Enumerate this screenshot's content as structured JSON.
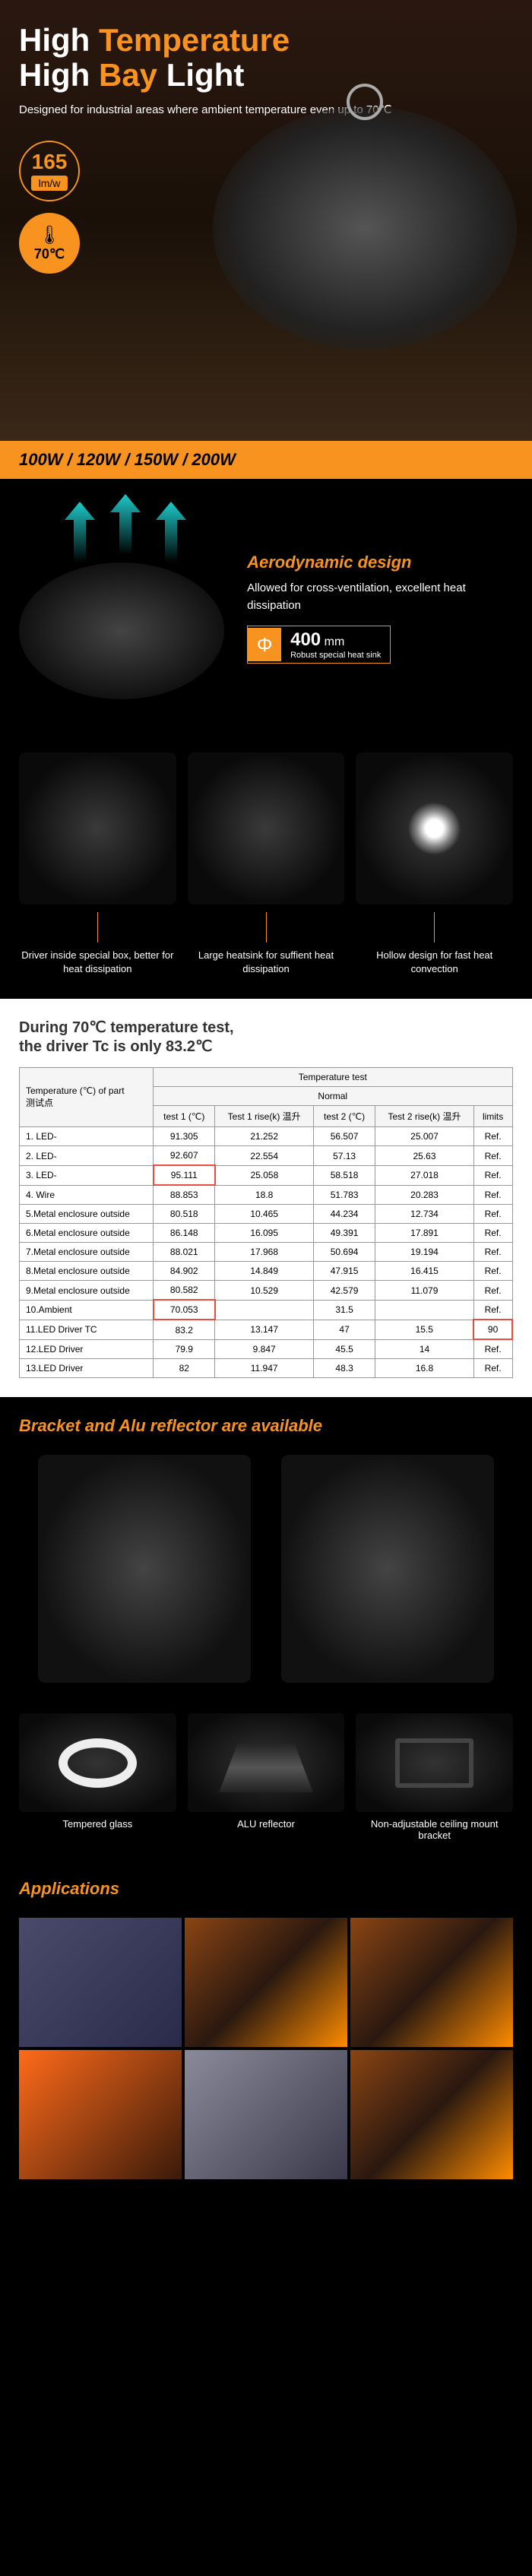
{
  "hero": {
    "title_line1_a": "High",
    "title_line1_b": "Temperature",
    "title_line2_a": "High",
    "title_line2_b": "Bay",
    "title_line2_c": "Light",
    "subtitle": "Designed for industrial areas where ambient temperature even up to 70℃",
    "badge_165": "165",
    "badge_lmw": "lm/w",
    "badge_temp": "70℃",
    "wattages": "100W / 120W / 150W / 200W"
  },
  "aero": {
    "title": "Aerodynamic design",
    "desc": "Allowed for cross-ventilation, excellent heat dissipation",
    "phi_val": "400",
    "phi_unit": "mm",
    "phi_sub": "Robust special heat sink"
  },
  "cols": [
    {
      "text": "Driver inside special box, better for heat dissipation"
    },
    {
      "text": "Large heatsink for suffient heat dissipation"
    },
    {
      "text": "Hollow design for fast heat convection"
    }
  ],
  "test": {
    "title_a": "During 70℃ temperature test,",
    "title_b": "the driver Tc is only 83.2℃",
    "header_main": "Temperature (℃) of part",
    "header_cn": "测试点",
    "header_temp": "Temperature test",
    "header_normal": "Normal",
    "cols": [
      "test 1 (℃)",
      "Test 1 rise(k) 温升",
      "test 2 (℃)",
      "Test 2 rise(k) 温升",
      "limits"
    ],
    "rows": [
      {
        "n": "1. LED-",
        "v": [
          "91.305",
          "21.252",
          "56.507",
          "25.007",
          "Ref."
        ]
      },
      {
        "n": "2. LED-",
        "v": [
          "92.607",
          "22.554",
          "57.13",
          "25.63",
          "Ref."
        ]
      },
      {
        "n": "3. LED-",
        "v": [
          "95.111",
          "25.058",
          "58.518",
          "27.018",
          "Ref."
        ],
        "hl": 0
      },
      {
        "n": "4. Wire",
        "v": [
          "88.853",
          "18.8",
          "51.783",
          "20.283",
          "Ref."
        ]
      },
      {
        "n": "5.Metal enclosure outside",
        "v": [
          "80.518",
          "10.465",
          "44.234",
          "12.734",
          "Ref."
        ]
      },
      {
        "n": "6.Metal enclosure outside",
        "v": [
          "86.148",
          "16.095",
          "49.391",
          "17.891",
          "Ref."
        ]
      },
      {
        "n": "7.Metal enclosure outside",
        "v": [
          "88.021",
          "17.968",
          "50.694",
          "19.194",
          "Ref."
        ]
      },
      {
        "n": "8.Metal enclosure outside",
        "v": [
          "84.902",
          "14.849",
          "47.915",
          "16.415",
          "Ref."
        ]
      },
      {
        "n": "9.Metal enclosure outside",
        "v": [
          "80.582",
          "10.529",
          "42.579",
          "11.079",
          "Ref."
        ]
      },
      {
        "n": "10.Ambient",
        "v": [
          "70.053",
          "",
          "31.5",
          "",
          "Ref."
        ],
        "hl": 0
      },
      {
        "n": "11.LED  Driver TC",
        "v": [
          "83.2",
          "13.147",
          "47",
          "15.5",
          "90"
        ],
        "hl": 4
      },
      {
        "n": "12.LED Driver",
        "v": [
          "79.9",
          "9.847",
          "45.5",
          "14",
          "Ref."
        ]
      },
      {
        "n": "13.LED Driver",
        "v": [
          "82",
          "11.947",
          "48.3",
          "16.8",
          "Ref."
        ]
      }
    ]
  },
  "bracket": {
    "title": "Bracket and Alu reflector are available",
    "acc": [
      "Tempered glass",
      "ALU reflector",
      "Non-adjustable ceiling mount bracket"
    ]
  },
  "apps": {
    "title": "Applications"
  },
  "colors": {
    "orange": "#f7931e",
    "red": "#e74c3c"
  }
}
